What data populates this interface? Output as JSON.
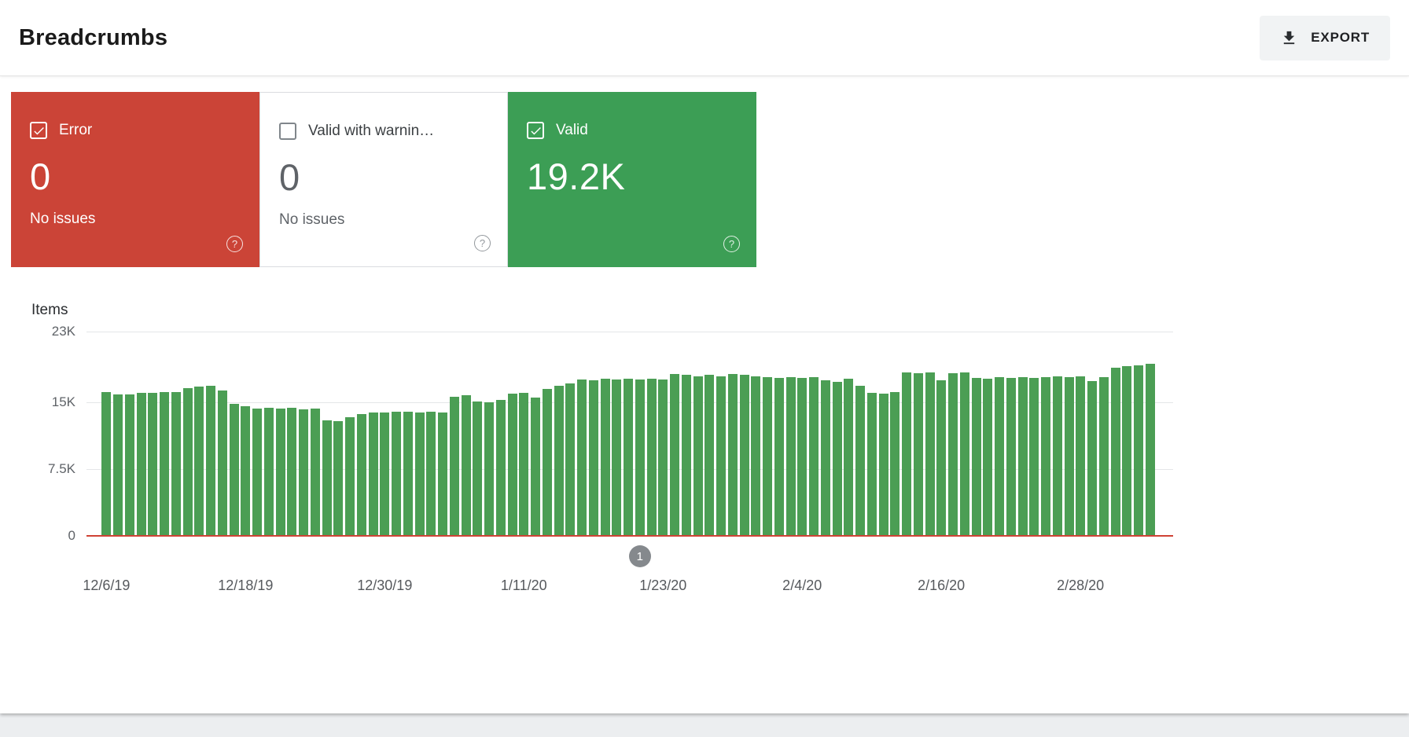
{
  "header": {
    "title": "Breadcrumbs",
    "export_label": "EXPORT"
  },
  "cards": [
    {
      "id": "error",
      "label": "Error",
      "value": "0",
      "subtext": "No issues",
      "checked": true,
      "bg": "#cb4437",
      "fg": "#ffffff"
    },
    {
      "id": "valid-with-warnings",
      "label": "Valid with warnin…",
      "value": "0",
      "subtext": "No issues",
      "checked": false,
      "bg": "#ffffff",
      "fg": "#3c4043"
    },
    {
      "id": "valid",
      "label": "Valid",
      "value": "19.2K",
      "subtext": "",
      "checked": true,
      "bg": "#3c9e55",
      "fg": "#ffffff"
    }
  ],
  "chart_data": {
    "type": "bar",
    "title": "Items",
    "xlabel": "",
    "ylabel": "Items",
    "ylim": [
      0,
      23000
    ],
    "grid": true,
    "bar_color": "#4b9e54",
    "baseline_color": "#cf4235",
    "ytick_values": [
      23000,
      15000,
      7500,
      0
    ],
    "ytick_labels": [
      "23K",
      "15K",
      "7.5K",
      "0"
    ],
    "x_tick_labels": [
      "12/6/19",
      "12/18/19",
      "12/30/19",
      "1/11/20",
      "1/23/20",
      "2/4/20",
      "2/16/20",
      "2/28/20"
    ],
    "x_tick_indices": [
      0,
      12,
      24,
      36,
      48,
      60,
      72,
      84
    ],
    "annotation": {
      "label": "1",
      "index": 46
    },
    "values": [
      16200,
      15900,
      15950,
      16100,
      16100,
      16200,
      16200,
      16600,
      16800,
      16900,
      16400,
      14900,
      14600,
      14300,
      14400,
      14300,
      14400,
      14200,
      14300,
      13000,
      12900,
      13400,
      13700,
      13900,
      13900,
      13950,
      14000,
      13900,
      14000,
      13900,
      15700,
      15800,
      15100,
      15000,
      15300,
      16000,
      16100,
      15600,
      16500,
      16900,
      17200,
      17600,
      17500,
      17700,
      17600,
      17700,
      17600,
      17700,
      17600,
      18200,
      18100,
      18000,
      18100,
      18000,
      18200,
      18100,
      18000,
      17900,
      17800,
      17900,
      17800,
      17900,
      17500,
      17300,
      17700,
      16900,
      16100,
      16000,
      16200,
      18400,
      18300,
      18400,
      17500,
      18300,
      18400,
      17800,
      17700,
      17900,
      17800,
      17900,
      17800,
      17900,
      18000,
      17900,
      18000,
      17400,
      17900,
      18900,
      19100,
      19200,
      19400
    ]
  }
}
